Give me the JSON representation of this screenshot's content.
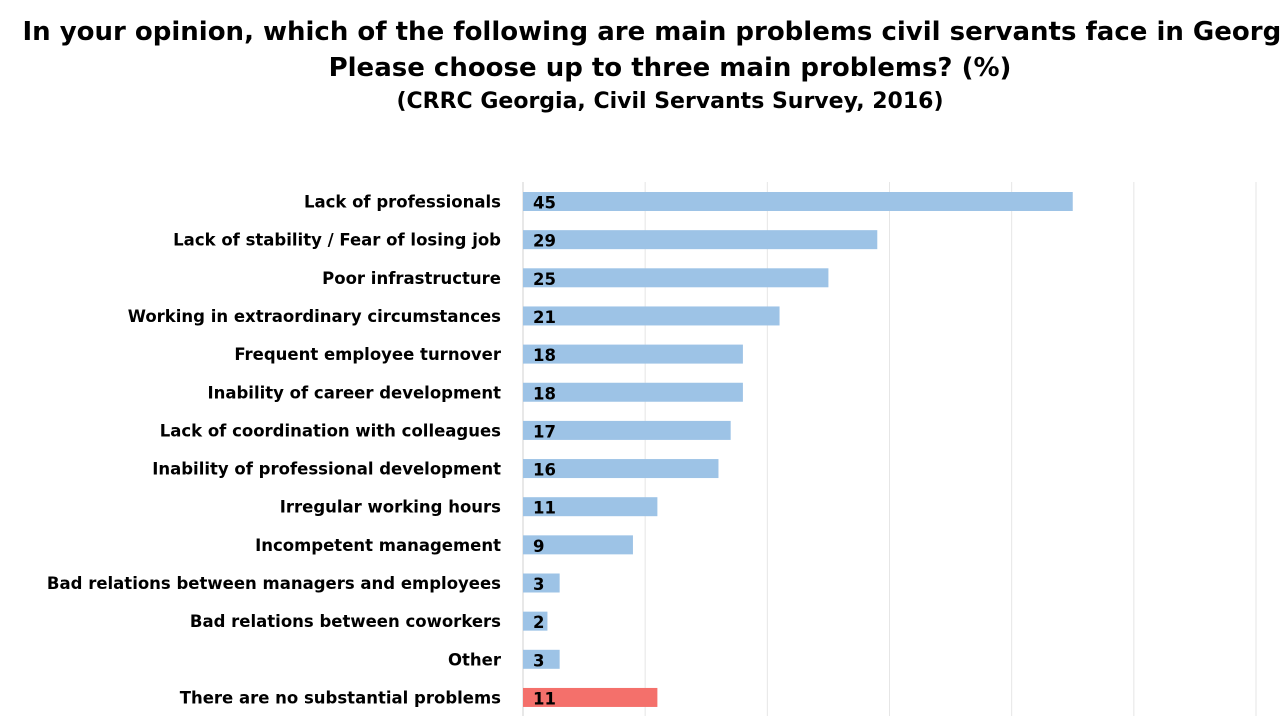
{
  "chart_data": {
    "type": "bar",
    "orientation": "horizontal",
    "title": "In your opinion, which of the following are main problems civil servants face in Georgia. Please choose up to three main problems? (%)",
    "subtitle": "(CRRC Georgia, Civil Servants Survey, 2016)",
    "categories": [
      "Lack of professionals",
      "Lack of stability / Fear of losing job",
      "Poor infrastructure",
      "Working in extraordinary circumstances",
      "Frequent employee turnover",
      "Inability of career development",
      "Lack of coordination with colleagues",
      "Inability of professional development",
      "Irregular working hours",
      "Incompetent management",
      "Bad relations between managers and employees",
      "Bad relations between coworkers",
      "Other",
      "There are no substantial problems"
    ],
    "values": [
      45,
      29,
      25,
      21,
      18,
      18,
      17,
      16,
      11,
      9,
      3,
      2,
      3,
      11
    ],
    "bar_colors": [
      "#9dc3e6",
      "#9dc3e6",
      "#9dc3e6",
      "#9dc3e6",
      "#9dc3e6",
      "#9dc3e6",
      "#9dc3e6",
      "#9dc3e6",
      "#9dc3e6",
      "#9dc3e6",
      "#9dc3e6",
      "#9dc3e6",
      "#9dc3e6",
      "#f4706b"
    ],
    "xlim": [
      0,
      60
    ],
    "grid": true,
    "legend": "none",
    "data_labels": "inside-base"
  }
}
